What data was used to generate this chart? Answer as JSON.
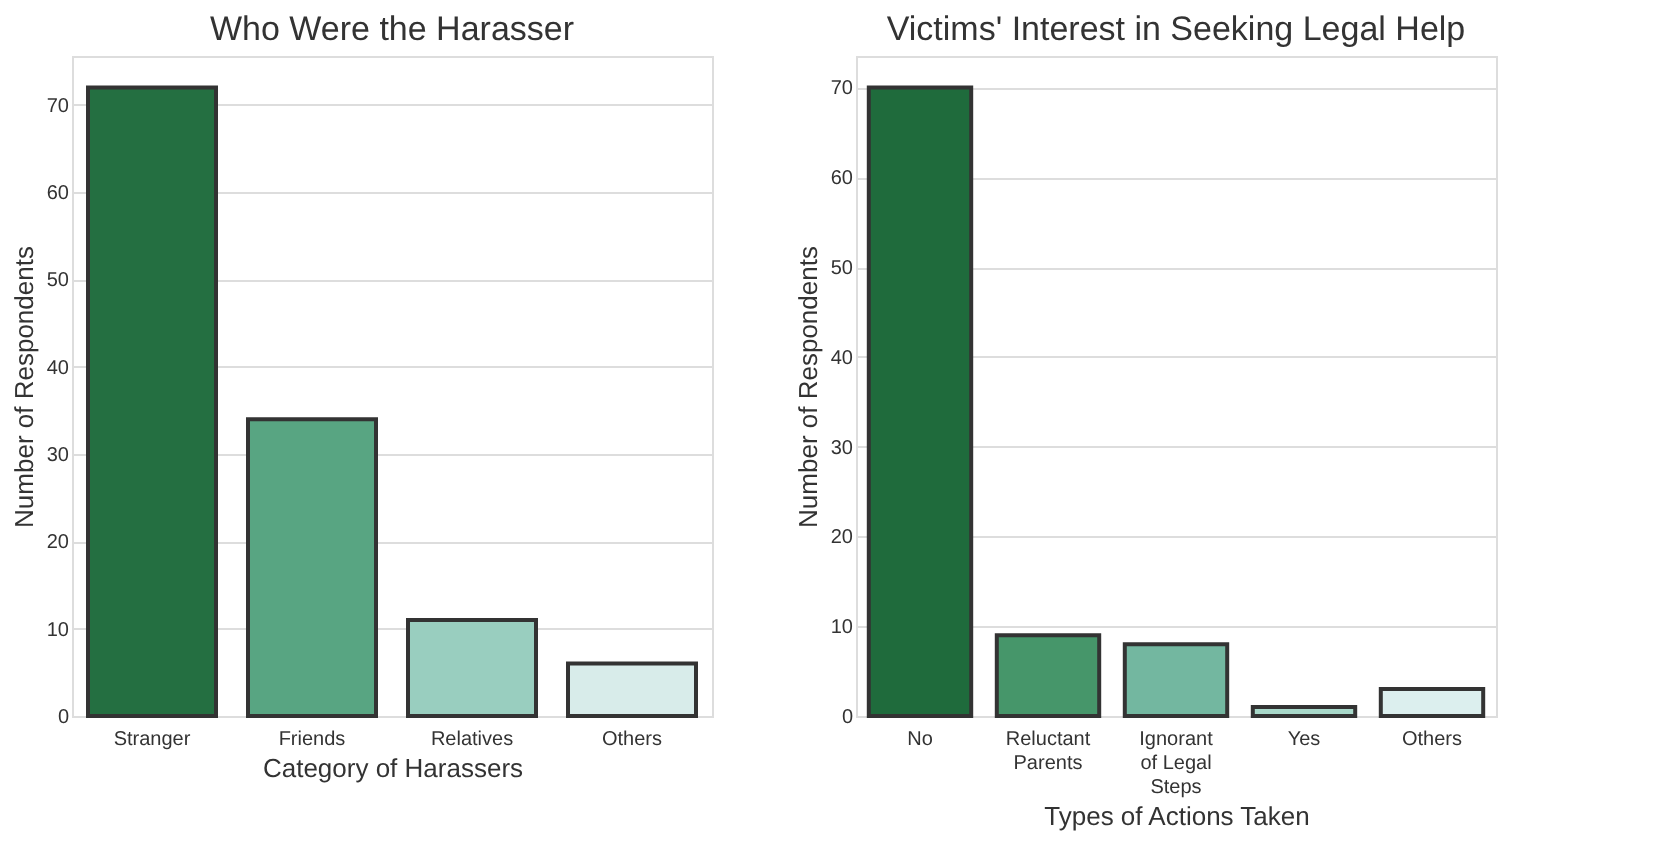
{
  "chart_data": [
    {
      "type": "bar",
      "title": "Who Were the Harasser",
      "xlabel": "Category of Harassers",
      "ylabel": "Number of Respondents",
      "categories": [
        "Stranger",
        "Friends",
        "Relatives",
        "Others"
      ],
      "values": [
        72,
        34,
        11,
        6
      ],
      "colors": [
        "#246f41",
        "#58a582",
        "#99cebf",
        "#d8ecea"
      ],
      "ylim": [
        0,
        75.6
      ],
      "yticks": [
        0,
        10,
        20,
        30,
        40,
        50,
        60,
        70
      ],
      "grid": "y",
      "legend": false
    },
    {
      "type": "bar",
      "title": "Victims' Interest in Seeking Legal Help",
      "xlabel": "Types of Actions Taken",
      "ylabel": "Number of Respondents",
      "categories": [
        "No",
        "Reluctant\nParents",
        "Ignorant\nof Legal\nSteps",
        "Yes",
        "Others"
      ],
      "values": [
        70,
        9,
        8,
        1,
        3
      ],
      "colors": [
        "#1f6b3c",
        "#46966a",
        "#73b7a0",
        "#a8d8c9",
        "#dcefee"
      ],
      "ylim": [
        0,
        73.5
      ],
      "yticks": [
        0,
        10,
        20,
        30,
        40,
        50,
        60,
        70
      ],
      "grid": "y",
      "legend": false
    }
  ]
}
